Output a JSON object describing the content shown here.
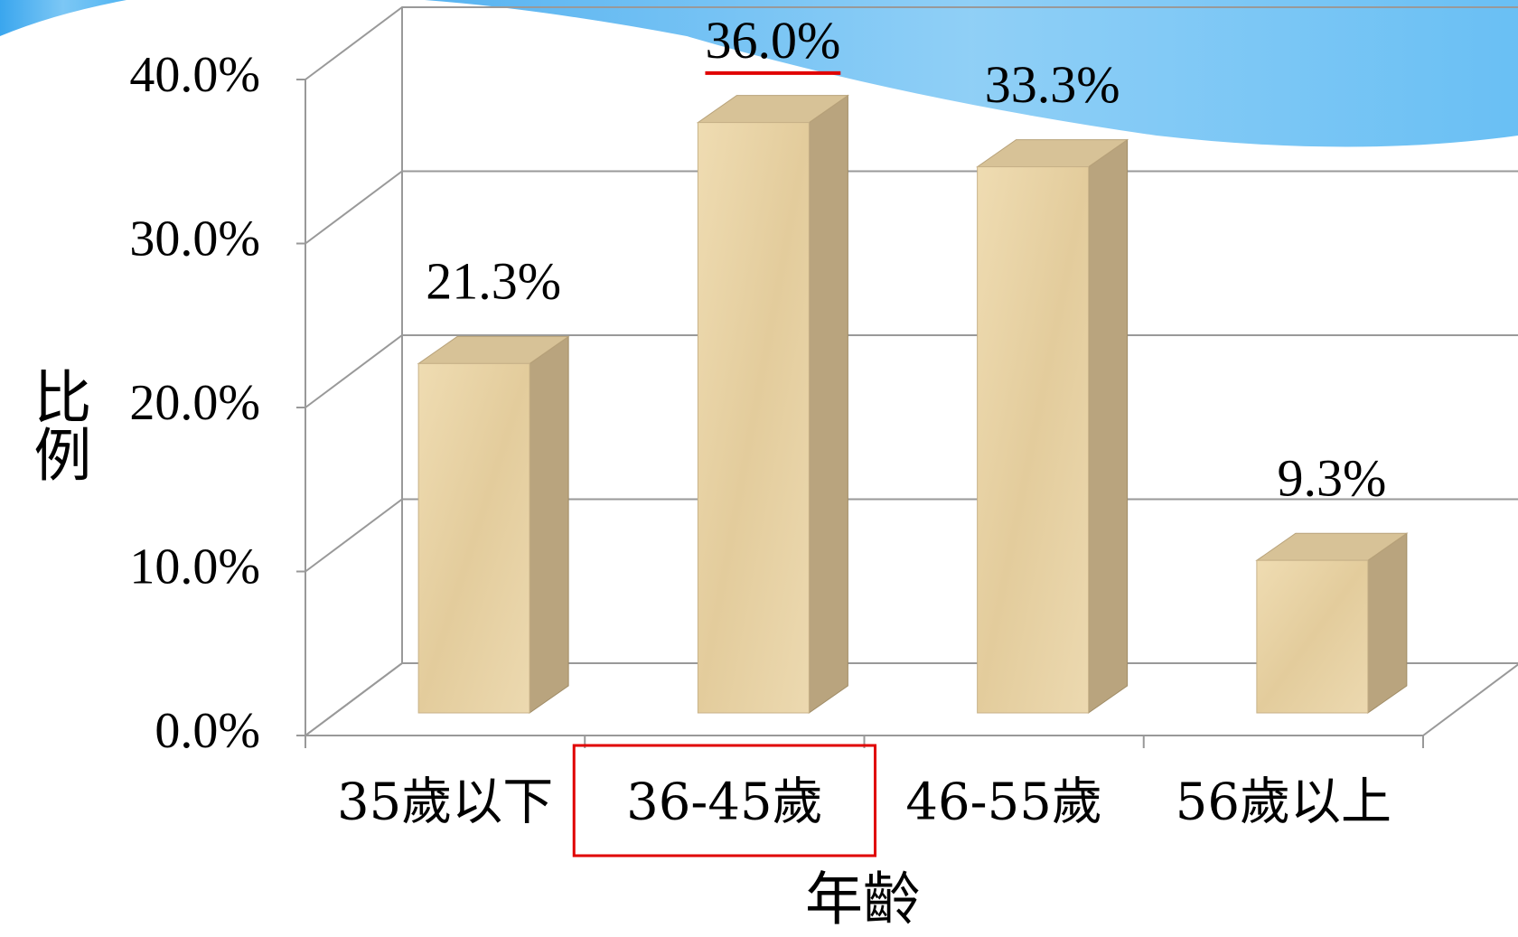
{
  "chart_data": {
    "type": "bar3d",
    "x_label": "年齡",
    "y_label": "比例",
    "categories": [
      "35歲以下",
      "36-45歲",
      "46-55歲",
      "56歲以上"
    ],
    "values": [
      21.3,
      36.0,
      33.3,
      9.3
    ],
    "value_labels": [
      "21.3%",
      "36.0%",
      "33.3%",
      "9.3%"
    ],
    "label_colors": [
      "#000000",
      "#e00000",
      "#000000",
      "#000000"
    ],
    "color": "#e6d2a6",
    "ylim": [
      0,
      40
    ],
    "yticks": [
      {
        "value": 0,
        "label": "0.0%"
      },
      {
        "value": 10,
        "label": "10.0%"
      },
      {
        "value": 20,
        "label": "20.0%"
      },
      {
        "value": 30,
        "label": "30.0%"
      },
      {
        "value": 40,
        "label": "40.0%"
      }
    ],
    "grid": true
  }
}
